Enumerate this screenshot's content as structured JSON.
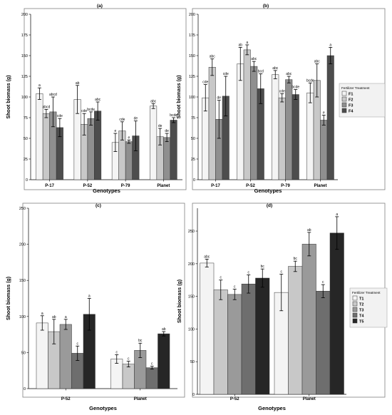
{
  "colors": {
    "F1": "#f4f4f4",
    "F2": "#c8c8c8",
    "F3": "#8f8f8f",
    "F4": "#4d4d4d",
    "T1": "#f4f4f4",
    "T2": "#c8c8c8",
    "T3": "#9a9a9a",
    "T4": "#6e6e6e",
    "T5": "#262626",
    "axis": "#000000",
    "border": "#7f7f7f"
  },
  "legends": {
    "ab": {
      "title": "Fertilizer Treatment",
      "entries": [
        "F1",
        "F2",
        "F3",
        "F4"
      ]
    },
    "cd": {
      "title": "Fertilizer Treatment",
      "entries": [
        "T1",
        "T2",
        "T3",
        "T4",
        "T5"
      ]
    }
  },
  "chart_data": [
    {
      "panel": "(a)",
      "type": "bar",
      "xlabel": "Genotypes",
      "ylabel": "Shoot biomass (g)",
      "ylim": [
        0,
        200
      ],
      "yticks": [
        0,
        25,
        50,
        75,
        100,
        125,
        150,
        175,
        200
      ],
      "categories": [
        "P-17",
        "P-52",
        "P-79",
        "Planet"
      ],
      "series": [
        {
          "name": "F1",
          "values": [
            104,
            97,
            45,
            89
          ],
          "errors": [
            7,
            17,
            11,
            3
          ],
          "labels": [
            "a",
            "ab",
            "e",
            "abc"
          ]
        },
        {
          "name": "F2",
          "values": [
            80,
            67,
            59,
            52
          ],
          "errors": [
            5,
            13,
            11,
            10
          ],
          "labels": [
            "abcd",
            "cde",
            "cde",
            "de"
          ]
        },
        {
          "name": "F3",
          "values": [
            82,
            74,
            46,
            51
          ],
          "errors": [
            18,
            8,
            2,
            5
          ],
          "labels": [
            "abcd",
            "bcde",
            "e",
            "de"
          ]
        },
        {
          "name": "F4",
          "values": [
            63,
            83,
            53,
            72
          ],
          "errors": [
            11,
            11,
            18,
            3
          ],
          "labels": [
            "cde",
            "abc",
            "de",
            "bcde"
          ]
        }
      ],
      "legend": "none",
      "grid": false
    },
    {
      "panel": "(b)",
      "type": "bar",
      "xlabel": "Genotypes",
      "ylabel": "Shoot biomass (g)",
      "ylim": [
        0,
        200
      ],
      "yticks": [
        0,
        25,
        50,
        75,
        100,
        125,
        150,
        175,
        200
      ],
      "categories": [
        "P-17",
        "P-52",
        "P-79",
        "Planet"
      ],
      "series": [
        {
          "name": "F1",
          "values": [
            99,
            140,
            127,
            105
          ],
          "errors": [
            16,
            20,
            5,
            12
          ],
          "labels": [
            "cde",
            "ab",
            "abc",
            "bcde"
          ]
        },
        {
          "name": "F2",
          "values": [
            136,
            157,
            99,
            120
          ],
          "errors": [
            10,
            6,
            5,
            20
          ],
          "labels": [
            "abc",
            "a",
            "cde",
            "abc"
          ]
        },
        {
          "name": "F3",
          "values": [
            73,
            137,
            121,
            72
          ],
          "errors": [
            23,
            6,
            4,
            6
          ],
          "labels": [
            "de",
            "abc",
            "abc",
            "e"
          ]
        },
        {
          "name": "F4",
          "values": [
            101,
            110,
            103,
            150
          ],
          "errors": [
            24,
            18,
            6,
            10
          ],
          "labels": [
            "cde",
            "bcd",
            "bcde",
            "a"
          ]
        }
      ],
      "legend": "right",
      "grid": false
    },
    {
      "panel": "(c)",
      "type": "bar",
      "xlabel": "Genotypes",
      "ylabel": "Shoot biomass (g)",
      "ylim": [
        0,
        250
      ],
      "yticks": [
        0,
        50,
        100,
        150,
        200,
        250
      ],
      "categories": [
        "P-52",
        "Planet"
      ],
      "series": [
        {
          "name": "T1",
          "values": [
            91,
            41
          ],
          "errors": [
            10,
            6
          ],
          "labels": [
            "a",
            "c"
          ]
        },
        {
          "name": "T2",
          "values": [
            79,
            34
          ],
          "errors": [
            17,
            4
          ],
          "labels": [
            "ab",
            "c"
          ]
        },
        {
          "name": "T3",
          "values": [
            89,
            53
          ],
          "errors": [
            7,
            10
          ],
          "labels": [
            "a",
            "bc"
          ]
        },
        {
          "name": "T4",
          "values": [
            49,
            29
          ],
          "errors": [
            10,
            2
          ],
          "labels": [
            "c",
            "c"
          ]
        },
        {
          "name": "T5",
          "values": [
            103,
            76
          ],
          "errors": [
            22,
            3
          ],
          "labels": [
            "a",
            "ab"
          ]
        }
      ],
      "legend": "none",
      "grid": false
    },
    {
      "panel": "(d)",
      "type": "bar",
      "xlabel": "Genotypes",
      "ylabel": "Shoot biomass (g)",
      "ylim": [
        0,
        285
      ],
      "yticks": [
        0,
        50,
        100,
        150,
        200,
        250
      ],
      "categories": [
        "P-52",
        "Planet"
      ],
      "series": [
        {
          "name": "T1",
          "values": [
            201,
            156
          ],
          "errors": [
            6,
            28
          ],
          "labels": [
            "abc",
            "c"
          ]
        },
        {
          "name": "T2",
          "values": [
            160,
            196
          ],
          "errors": [
            15,
            8
          ],
          "labels": [
            "c",
            "bc"
          ]
        },
        {
          "name": "T3",
          "values": [
            153,
            230
          ],
          "errors": [
            8,
            18
          ],
          "labels": [
            "c",
            "ab"
          ]
        },
        {
          "name": "T4",
          "values": [
            169,
            158
          ],
          "errors": [
            14,
            10
          ],
          "labels": [
            "c",
            "c"
          ]
        },
        {
          "name": "T5",
          "values": [
            178,
            247
          ],
          "errors": [
            14,
            25
          ],
          "labels": [
            "bc",
            "a"
          ]
        }
      ],
      "legend": "right",
      "grid": false
    }
  ]
}
